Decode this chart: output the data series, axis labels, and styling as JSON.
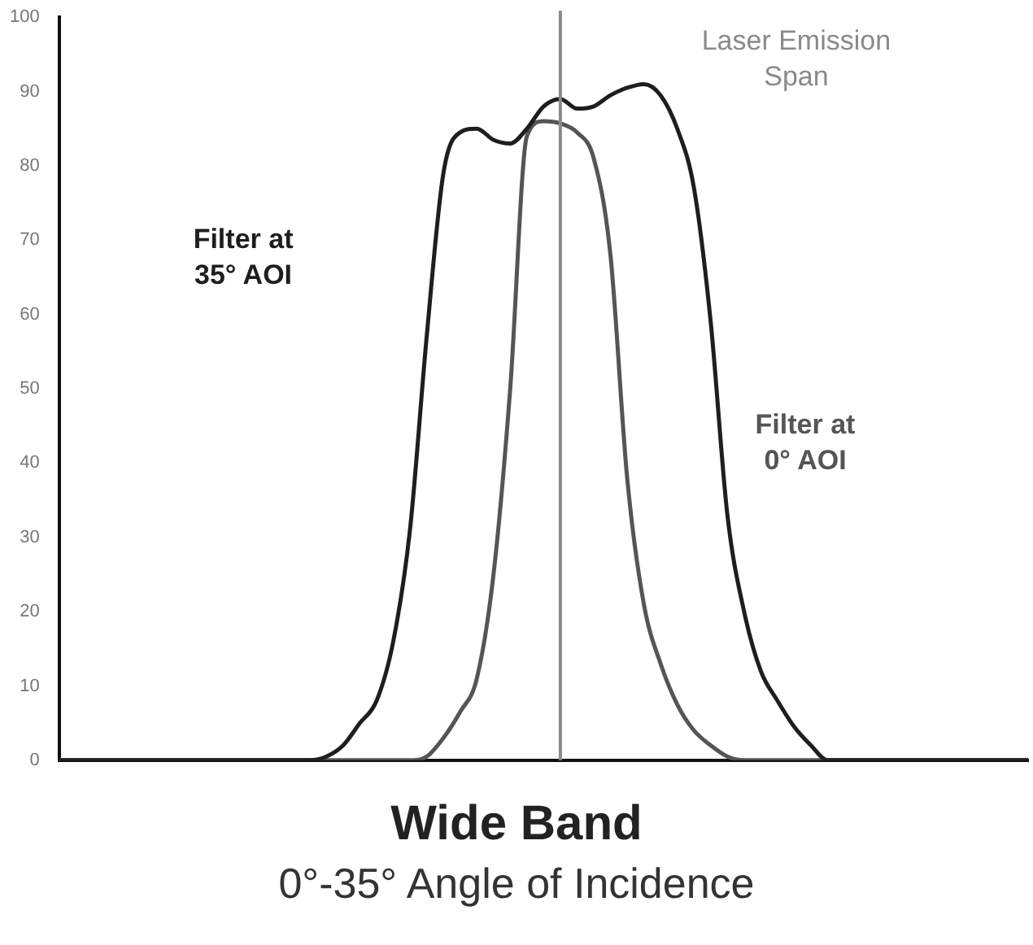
{
  "chart_data": {
    "type": "line",
    "title": "Wide Band",
    "subtitle": "0°-35° Angle of Incidence",
    "categories": [
      null,
      null,
      null,
      null,
      null,
      null,
      null,
      null,
      null,
      null,
      null,
      null,
      null,
      null,
      null,
      null,
      null,
      null,
      null,
      null,
      null,
      null,
      null,
      null,
      null,
      null,
      null,
      null,
      null,
      null,
      null,
      null,
      null,
      null,
      null,
      null,
      null,
      null,
      null,
      null,
      null,
      null,
      null,
      null,
      null,
      null,
      null,
      null,
      null,
      null,
      null,
      null,
      null,
      null,
      null,
      null,
      null,
      null,
      null
    ],
    "series": [
      {
        "name": "Filter at 35° AOI",
        "color": "#1e1e1e",
        "values": [
          0,
          0,
          0,
          0,
          0,
          0,
          0,
          0,
          0,
          0,
          0,
          0,
          0,
          0,
          0,
          0,
          0.5,
          2,
          5,
          8,
          16,
          31,
          57,
          79,
          84.5,
          85,
          83.5,
          83,
          85,
          88,
          89,
          87.7,
          88,
          89.5,
          90.5,
          91,
          89.5,
          85,
          77,
          59,
          33,
          20,
          12,
          8,
          4.5,
          2,
          0,
          0,
          0,
          0,
          0,
          0,
          0,
          0,
          0,
          0,
          0,
          0,
          0
        ]
      },
      {
        "name": "Filter at 0° AOI",
        "color": "#555555",
        "values": [
          0,
          0,
          0,
          0,
          0,
          0,
          0,
          0,
          0,
          0,
          0,
          0,
          0,
          0,
          0,
          0,
          0,
          0,
          0,
          0,
          0,
          0,
          0.5,
          3,
          6.5,
          11,
          25,
          50,
          84,
          86,
          85.7,
          84.5,
          81,
          68,
          38,
          21,
          13,
          7.5,
          4,
          2,
          0.5,
          0,
          0,
          0,
          0,
          0,
          0,
          0,
          0,
          0,
          0,
          0,
          0,
          0,
          0,
          0,
          0,
          0,
          0
        ]
      }
    ],
    "ylim": [
      0,
      100
    ],
    "yticks": [
      0,
      10,
      20,
      30,
      40,
      50,
      60,
      70,
      80,
      90,
      100
    ],
    "grid": false,
    "legend": false,
    "tick_labels": "y",
    "marker": "none",
    "line_style": "solid",
    "annotations": [
      "Laser Emission Span"
    ]
  }
}
